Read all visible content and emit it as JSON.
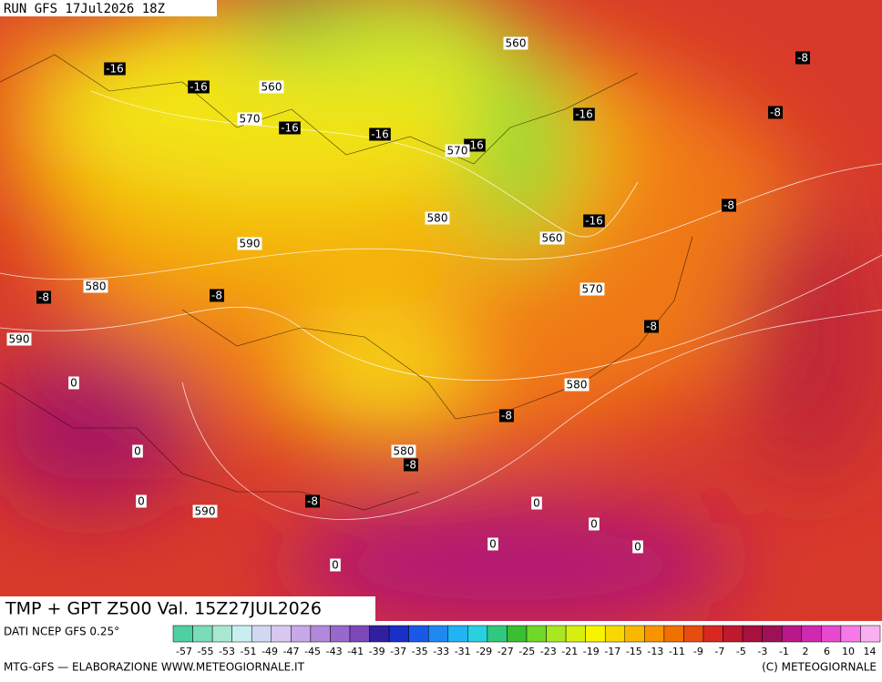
{
  "header": {
    "run": "RUN GFS 17Jul2026 18Z"
  },
  "map": {
    "temp_labels": [
      -16,
      -16,
      -16,
      -16,
      -16,
      -16,
      -16,
      -8,
      -8,
      -8,
      -8,
      -8,
      -8,
      -8,
      -8,
      -8
    ],
    "height_labels": [
      560,
      560,
      560,
      570,
      570,
      570,
      580,
      580,
      580,
      580,
      590,
      590,
      590
    ],
    "zero_labels": [
      0,
      0,
      0,
      0,
      0,
      0,
      0,
      0
    ]
  },
  "footer": {
    "title": "TMP + GPT Z500 Val. 15Z27JUL2026",
    "source": "DATI NCEP GFS 0.25°",
    "credit": "MTG-GFS — ELABORAZIONE WWW.METEOGIORNALE.IT",
    "copyright": "(C) METEOGIORNALE"
  },
  "colorbar": {
    "ticks": [
      -57,
      -55,
      -53,
      -51,
      -49,
      -47,
      -45,
      -43,
      -41,
      -39,
      -37,
      -35,
      -33,
      -31,
      -29,
      -27,
      -25,
      -23,
      -21,
      -19,
      -17,
      -15,
      -13,
      -11,
      -9,
      -7,
      -5,
      -3,
      -1,
      2,
      6,
      10,
      14
    ],
    "colors": [
      "#4fd0a0",
      "#7adcb8",
      "#a8e8d0",
      "#c8eef0",
      "#d0d8f4",
      "#d8c8f0",
      "#c8a8e8",
      "#b088dc",
      "#9868cc",
      "#7c48b8",
      "#3020a0",
      "#1830c8",
      "#1c58e8",
      "#2088f0",
      "#20b4f4",
      "#28d0e0",
      "#30c880",
      "#38c030",
      "#70d828",
      "#a8e820",
      "#d8f010",
      "#f8f400",
      "#f8d800",
      "#f8b800",
      "#f89400",
      "#f07000",
      "#e84c10",
      "#d82820",
      "#c01830",
      "#a81040",
      "#a01058",
      "#b81888",
      "#d028b0",
      "#e848d0",
      "#f878e8",
      "#f8b0f0"
    ]
  }
}
